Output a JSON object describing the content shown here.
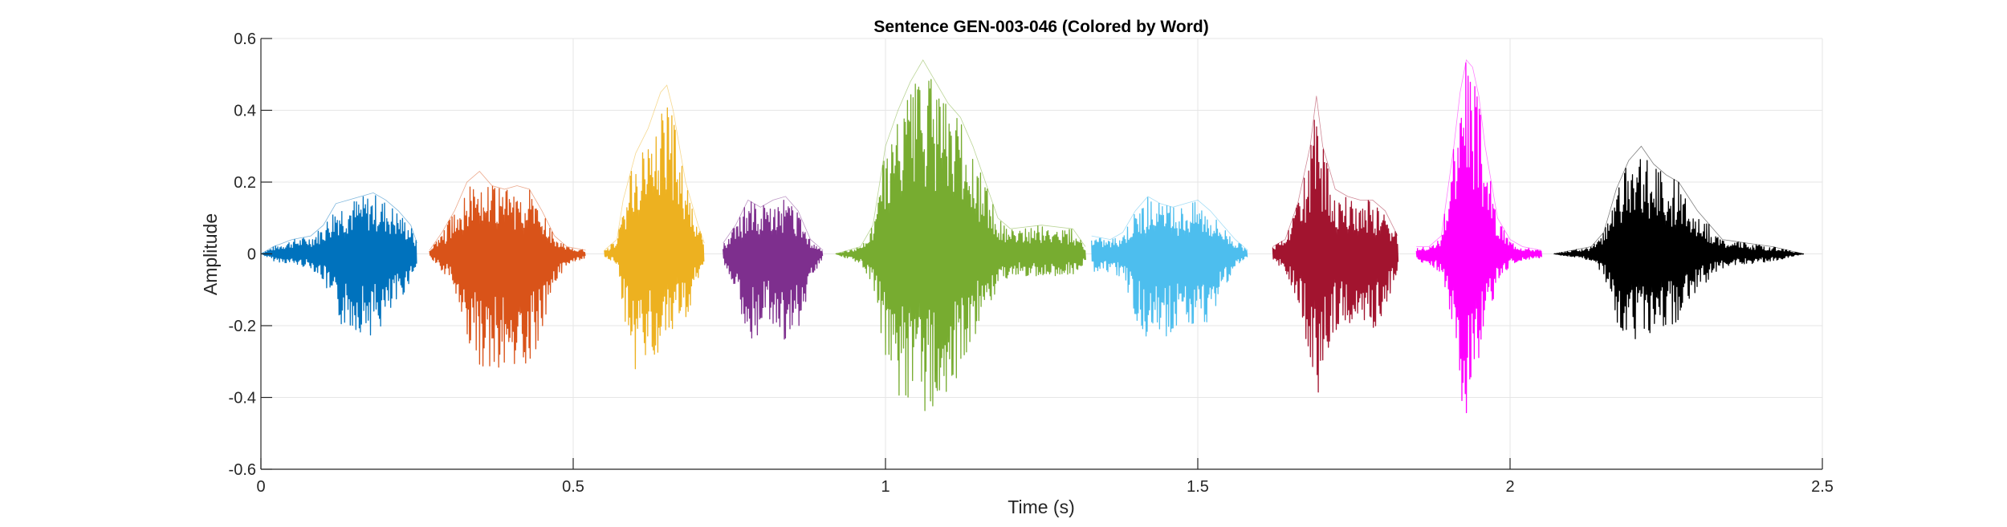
{
  "chart_data": {
    "type": "line",
    "title": "Sentence GEN-003-046 (Colored by Word)",
    "xlabel": "Time (s)",
    "ylabel": "Amplitude",
    "xlim": [
      0,
      2.5
    ],
    "ylim": [
      -0.6,
      0.6
    ],
    "xticks": [
      0,
      0.5,
      1,
      1.5,
      2,
      2.5
    ],
    "xtick_labels": [
      "0",
      "0.5",
      "1",
      "1.5",
      "2",
      "2.5"
    ],
    "yticks": [
      -0.6,
      -0.4,
      -0.2,
      0,
      0.2,
      0.4,
      0.6
    ],
    "ytick_labels": [
      "-0.6",
      "-0.4",
      "-0.2",
      "0",
      "0.2",
      "0.4",
      "0.6"
    ],
    "grid": true,
    "legend": "none",
    "series": [
      {
        "color": "#0072bd",
        "x": [
          0.0,
          0.02,
          0.05,
          0.08,
          0.1,
          0.12,
          0.14,
          0.16,
          0.18,
          0.2,
          0.22,
          0.24,
          0.25
        ],
        "upper": [
          0.0,
          0.02,
          0.04,
          0.05,
          0.08,
          0.14,
          0.15,
          0.16,
          0.17,
          0.15,
          0.12,
          0.08,
          0.03
        ],
        "lower": [
          0.0,
          -0.02,
          -0.03,
          -0.04,
          -0.08,
          -0.2,
          -0.21,
          -0.22,
          -0.23,
          -0.2,
          -0.14,
          -0.07,
          -0.03
        ]
      },
      {
        "color": "#d95319",
        "x": [
          0.27,
          0.29,
          0.31,
          0.33,
          0.35,
          0.37,
          0.39,
          0.41,
          0.43,
          0.45,
          0.47,
          0.49,
          0.52
        ],
        "upper": [
          0.01,
          0.06,
          0.12,
          0.2,
          0.23,
          0.19,
          0.18,
          0.19,
          0.18,
          0.12,
          0.05,
          0.02,
          0.01
        ],
        "lower": [
          -0.01,
          -0.05,
          -0.1,
          -0.25,
          -0.32,
          -0.34,
          -0.33,
          -0.35,
          -0.33,
          -0.2,
          -0.08,
          -0.03,
          -0.01
        ]
      },
      {
        "color": "#edb120",
        "x": [
          0.55,
          0.57,
          0.58,
          0.6,
          0.62,
          0.64,
          0.65,
          0.66,
          0.68,
          0.7,
          0.71
        ],
        "upper": [
          0.01,
          0.04,
          0.15,
          0.28,
          0.35,
          0.45,
          0.47,
          0.4,
          0.2,
          0.08,
          0.03
        ],
        "lower": [
          -0.01,
          -0.03,
          -0.18,
          -0.34,
          -0.28,
          -0.3,
          -0.28,
          -0.24,
          -0.18,
          -0.07,
          -0.03
        ]
      },
      {
        "color": "#7e2f8e",
        "x": [
          0.74,
          0.76,
          0.78,
          0.8,
          0.82,
          0.84,
          0.86,
          0.88,
          0.9
        ],
        "upper": [
          0.03,
          0.08,
          0.15,
          0.13,
          0.15,
          0.16,
          0.12,
          0.04,
          0.01
        ],
        "lower": [
          -0.03,
          -0.1,
          -0.27,
          -0.22,
          -0.2,
          -0.25,
          -0.22,
          -0.07,
          -0.01
        ]
      },
      {
        "color": "#77ac30",
        "x": [
          0.92,
          0.96,
          0.98,
          1.0,
          1.02,
          1.04,
          1.06,
          1.08,
          1.1,
          1.12,
          1.14,
          1.16,
          1.18,
          1.2,
          1.25,
          1.3,
          1.32
        ],
        "upper": [
          0.0,
          0.02,
          0.08,
          0.3,
          0.4,
          0.48,
          0.54,
          0.48,
          0.42,
          0.38,
          0.3,
          0.2,
          0.1,
          0.07,
          0.08,
          0.07,
          0.02
        ],
        "lower": [
          0.0,
          -0.03,
          -0.1,
          -0.3,
          -0.4,
          -0.42,
          -0.45,
          -0.43,
          -0.4,
          -0.33,
          -0.24,
          -0.15,
          -0.1,
          -0.06,
          -0.07,
          -0.06,
          -0.02
        ]
      },
      {
        "color": "#4dbeee",
        "x": [
          1.33,
          1.36,
          1.38,
          1.4,
          1.42,
          1.44,
          1.46,
          1.48,
          1.5,
          1.52,
          1.54,
          1.56,
          1.58
        ],
        "upper": [
          0.05,
          0.04,
          0.06,
          0.12,
          0.16,
          0.14,
          0.13,
          0.14,
          0.15,
          0.12,
          0.08,
          0.04,
          0.01
        ],
        "lower": [
          -0.05,
          -0.05,
          -0.07,
          -0.18,
          -0.24,
          -0.24,
          -0.22,
          -0.22,
          -0.23,
          -0.18,
          -0.1,
          -0.04,
          -0.01
        ]
      },
      {
        "color": "#a2142f",
        "x": [
          1.62,
          1.64,
          1.66,
          1.68,
          1.69,
          1.7,
          1.72,
          1.74,
          1.76,
          1.78,
          1.8,
          1.82
        ],
        "upper": [
          0.02,
          0.04,
          0.14,
          0.3,
          0.44,
          0.3,
          0.18,
          0.16,
          0.15,
          0.15,
          0.12,
          0.05
        ],
        "lower": [
          -0.02,
          -0.05,
          -0.15,
          -0.3,
          -0.41,
          -0.3,
          -0.22,
          -0.2,
          -0.23,
          -0.24,
          -0.15,
          -0.05
        ]
      },
      {
        "color": "#ff00ff",
        "x": [
          1.85,
          1.87,
          1.89,
          1.91,
          1.92,
          1.93,
          1.94,
          1.95,
          1.96,
          1.98,
          2.0,
          2.02,
          2.05
        ],
        "upper": [
          0.02,
          0.02,
          0.05,
          0.3,
          0.45,
          0.54,
          0.52,
          0.44,
          0.3,
          0.1,
          0.04,
          0.02,
          0.01
        ],
        "lower": [
          -0.02,
          -0.03,
          -0.06,
          -0.24,
          -0.4,
          -0.47,
          -0.43,
          -0.35,
          -0.2,
          -0.08,
          -0.03,
          -0.02,
          -0.01
        ]
      },
      {
        "color": "#000000",
        "x": [
          2.07,
          2.1,
          2.13,
          2.15,
          2.17,
          2.19,
          2.21,
          2.23,
          2.25,
          2.27,
          2.3,
          2.34,
          2.38,
          2.42,
          2.47
        ],
        "upper": [
          0.0,
          0.01,
          0.02,
          0.06,
          0.18,
          0.26,
          0.3,
          0.25,
          0.22,
          0.2,
          0.12,
          0.04,
          0.03,
          0.02,
          0.0
        ],
        "lower": [
          0.0,
          -0.01,
          -0.02,
          -0.06,
          -0.2,
          -0.27,
          -0.25,
          -0.23,
          -0.22,
          -0.18,
          -0.1,
          -0.04,
          -0.03,
          -0.02,
          0.0
        ]
      }
    ]
  }
}
